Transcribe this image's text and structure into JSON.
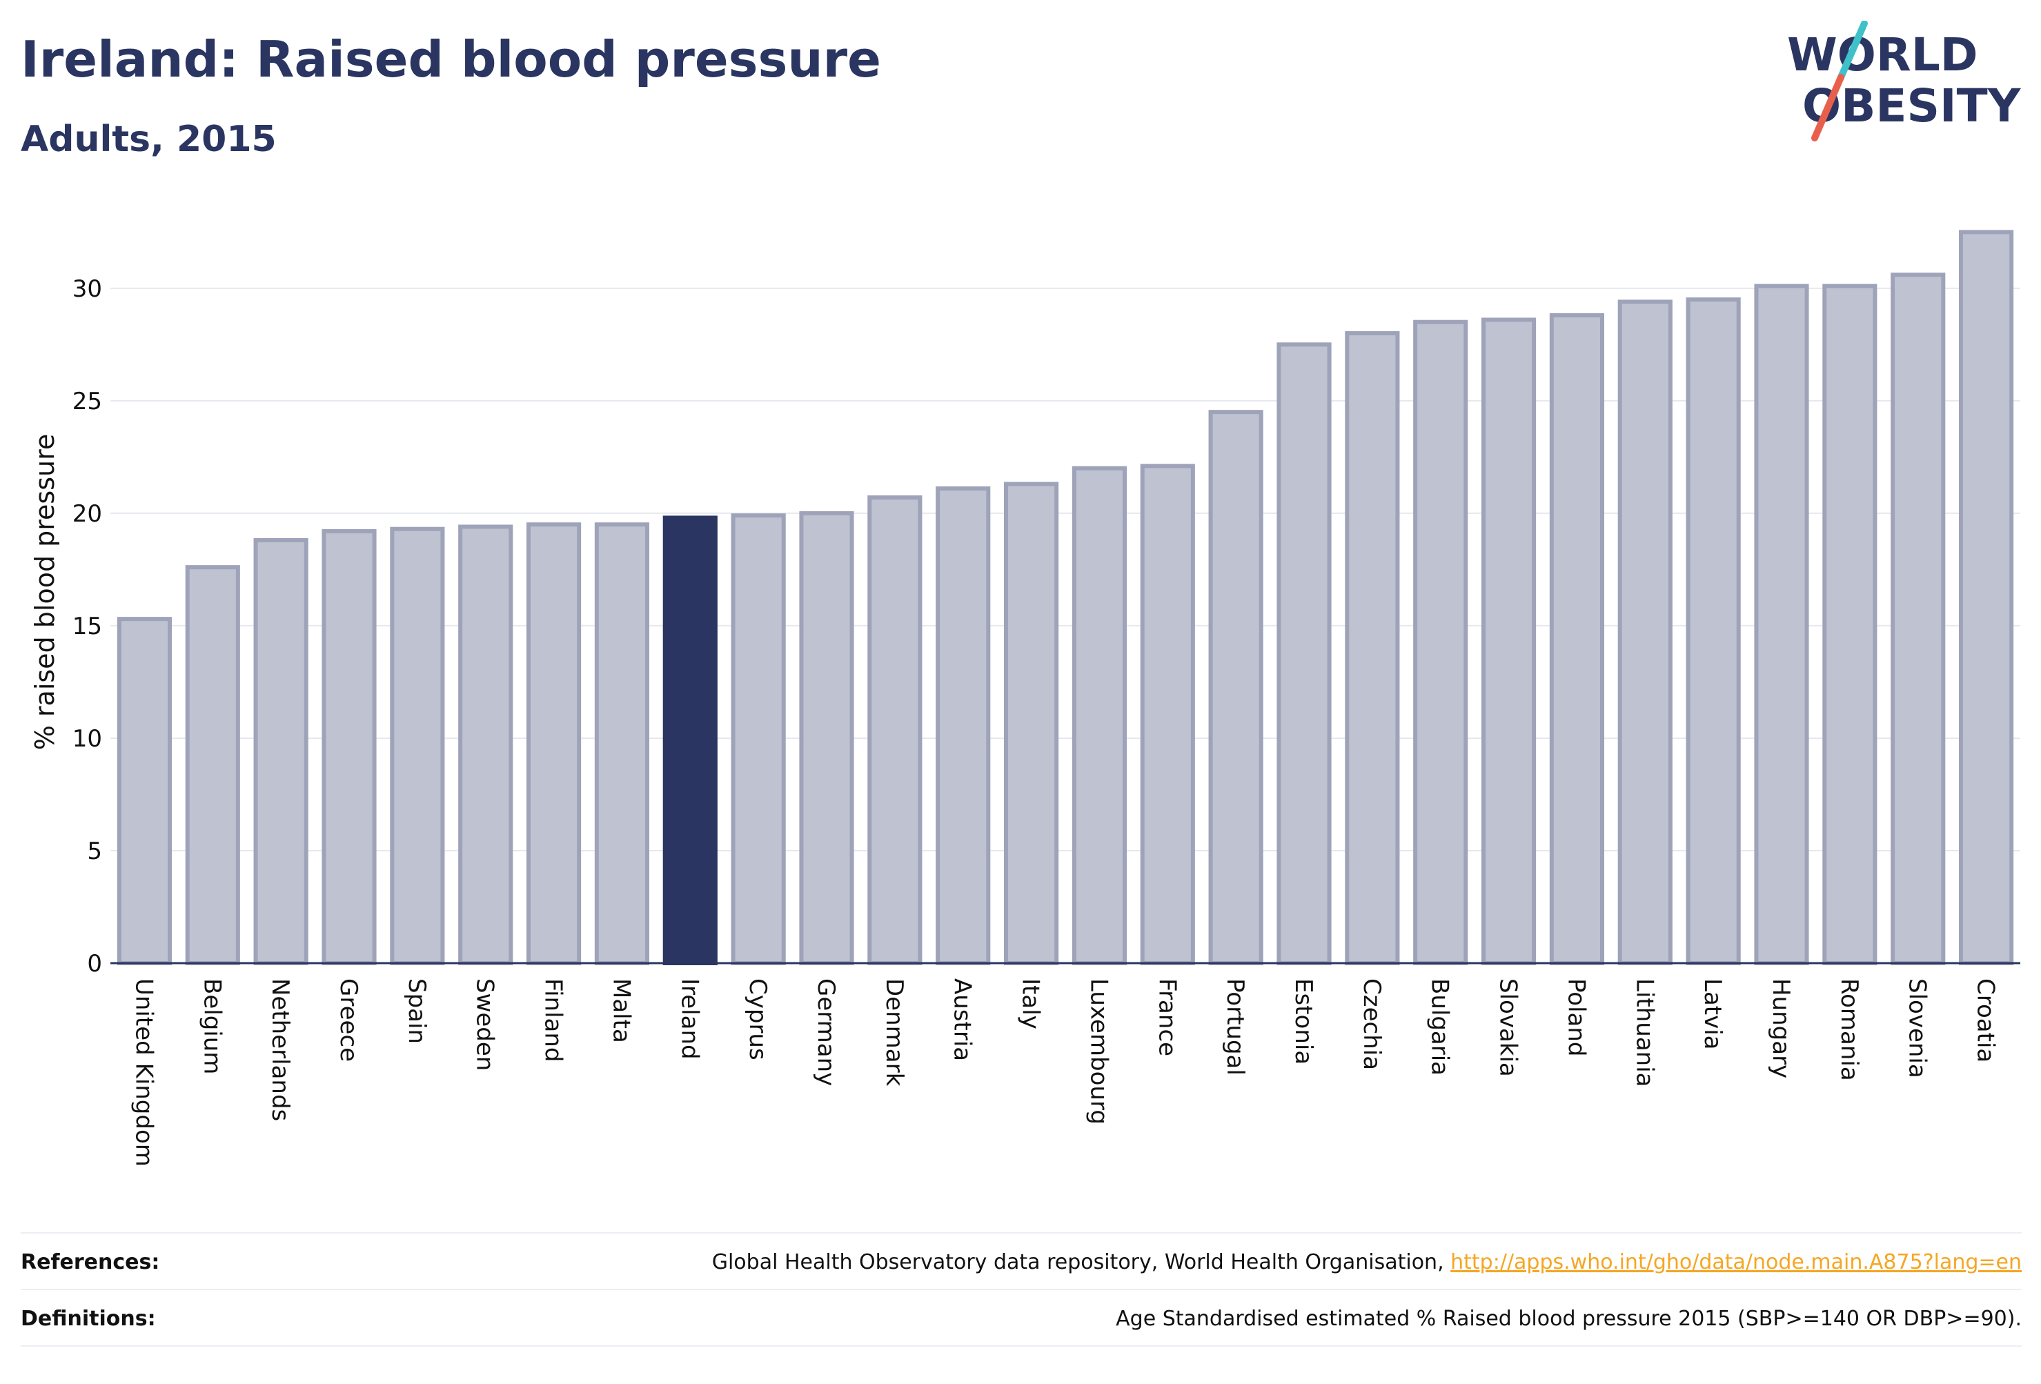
{
  "header": {
    "title": "Ireland: Raised blood pressure",
    "subtitle": "Adults, 2015"
  },
  "logo": {
    "line1": "WORLD",
    "line2": "OBESITY",
    "accent_colors": [
      "#3fc1c9",
      "#e8604c"
    ]
  },
  "colors": {
    "highlight_bar": "#2a3561",
    "other_bar_fill": "#bfc2d0",
    "other_bar_stroke": "#9ea3b9",
    "brand_text": "#2a3561",
    "link": "#f5a623"
  },
  "chart_data": {
    "type": "bar",
    "title": "",
    "xlabel": "",
    "ylabel": "% raised blood pressure",
    "ylim": [
      0,
      33
    ],
    "yticks": [
      0,
      5,
      10,
      15,
      20,
      25,
      30
    ],
    "grid": true,
    "highlight": "Ireland",
    "categories": [
      "United Kingdom",
      "Belgium",
      "Netherlands",
      "Greece",
      "Spain",
      "Sweden",
      "Finland",
      "Malta",
      "Ireland",
      "Cyprus",
      "Germany",
      "Denmark",
      "Austria",
      "Italy",
      "Luxembourg",
      "France",
      "Portugal",
      "Estonia",
      "Czechia",
      "Bulgaria",
      "Slovakia",
      "Poland",
      "Lithuania",
      "Latvia",
      "Hungary",
      "Romania",
      "Slovenia",
      "Croatia"
    ],
    "values": [
      15.3,
      17.6,
      18.8,
      19.2,
      19.3,
      19.4,
      19.5,
      19.5,
      19.8,
      19.9,
      20.0,
      20.7,
      21.1,
      21.3,
      22.0,
      22.1,
      24.5,
      27.5,
      28.0,
      28.5,
      28.6,
      28.8,
      29.4,
      29.5,
      30.1,
      30.1,
      30.6,
      32.5
    ]
  },
  "footer": {
    "references_label": "References:",
    "references_text": "Global Health Observatory data repository, World Health Organisation, ",
    "references_link": "http://apps.who.int/gho/data/node.main.A875?lang=en",
    "definitions_label": "Definitions:",
    "definitions_text": "Age Standardised estimated % Raised blood pressure 2015 (SBP>=140 OR DBP>=90)."
  }
}
